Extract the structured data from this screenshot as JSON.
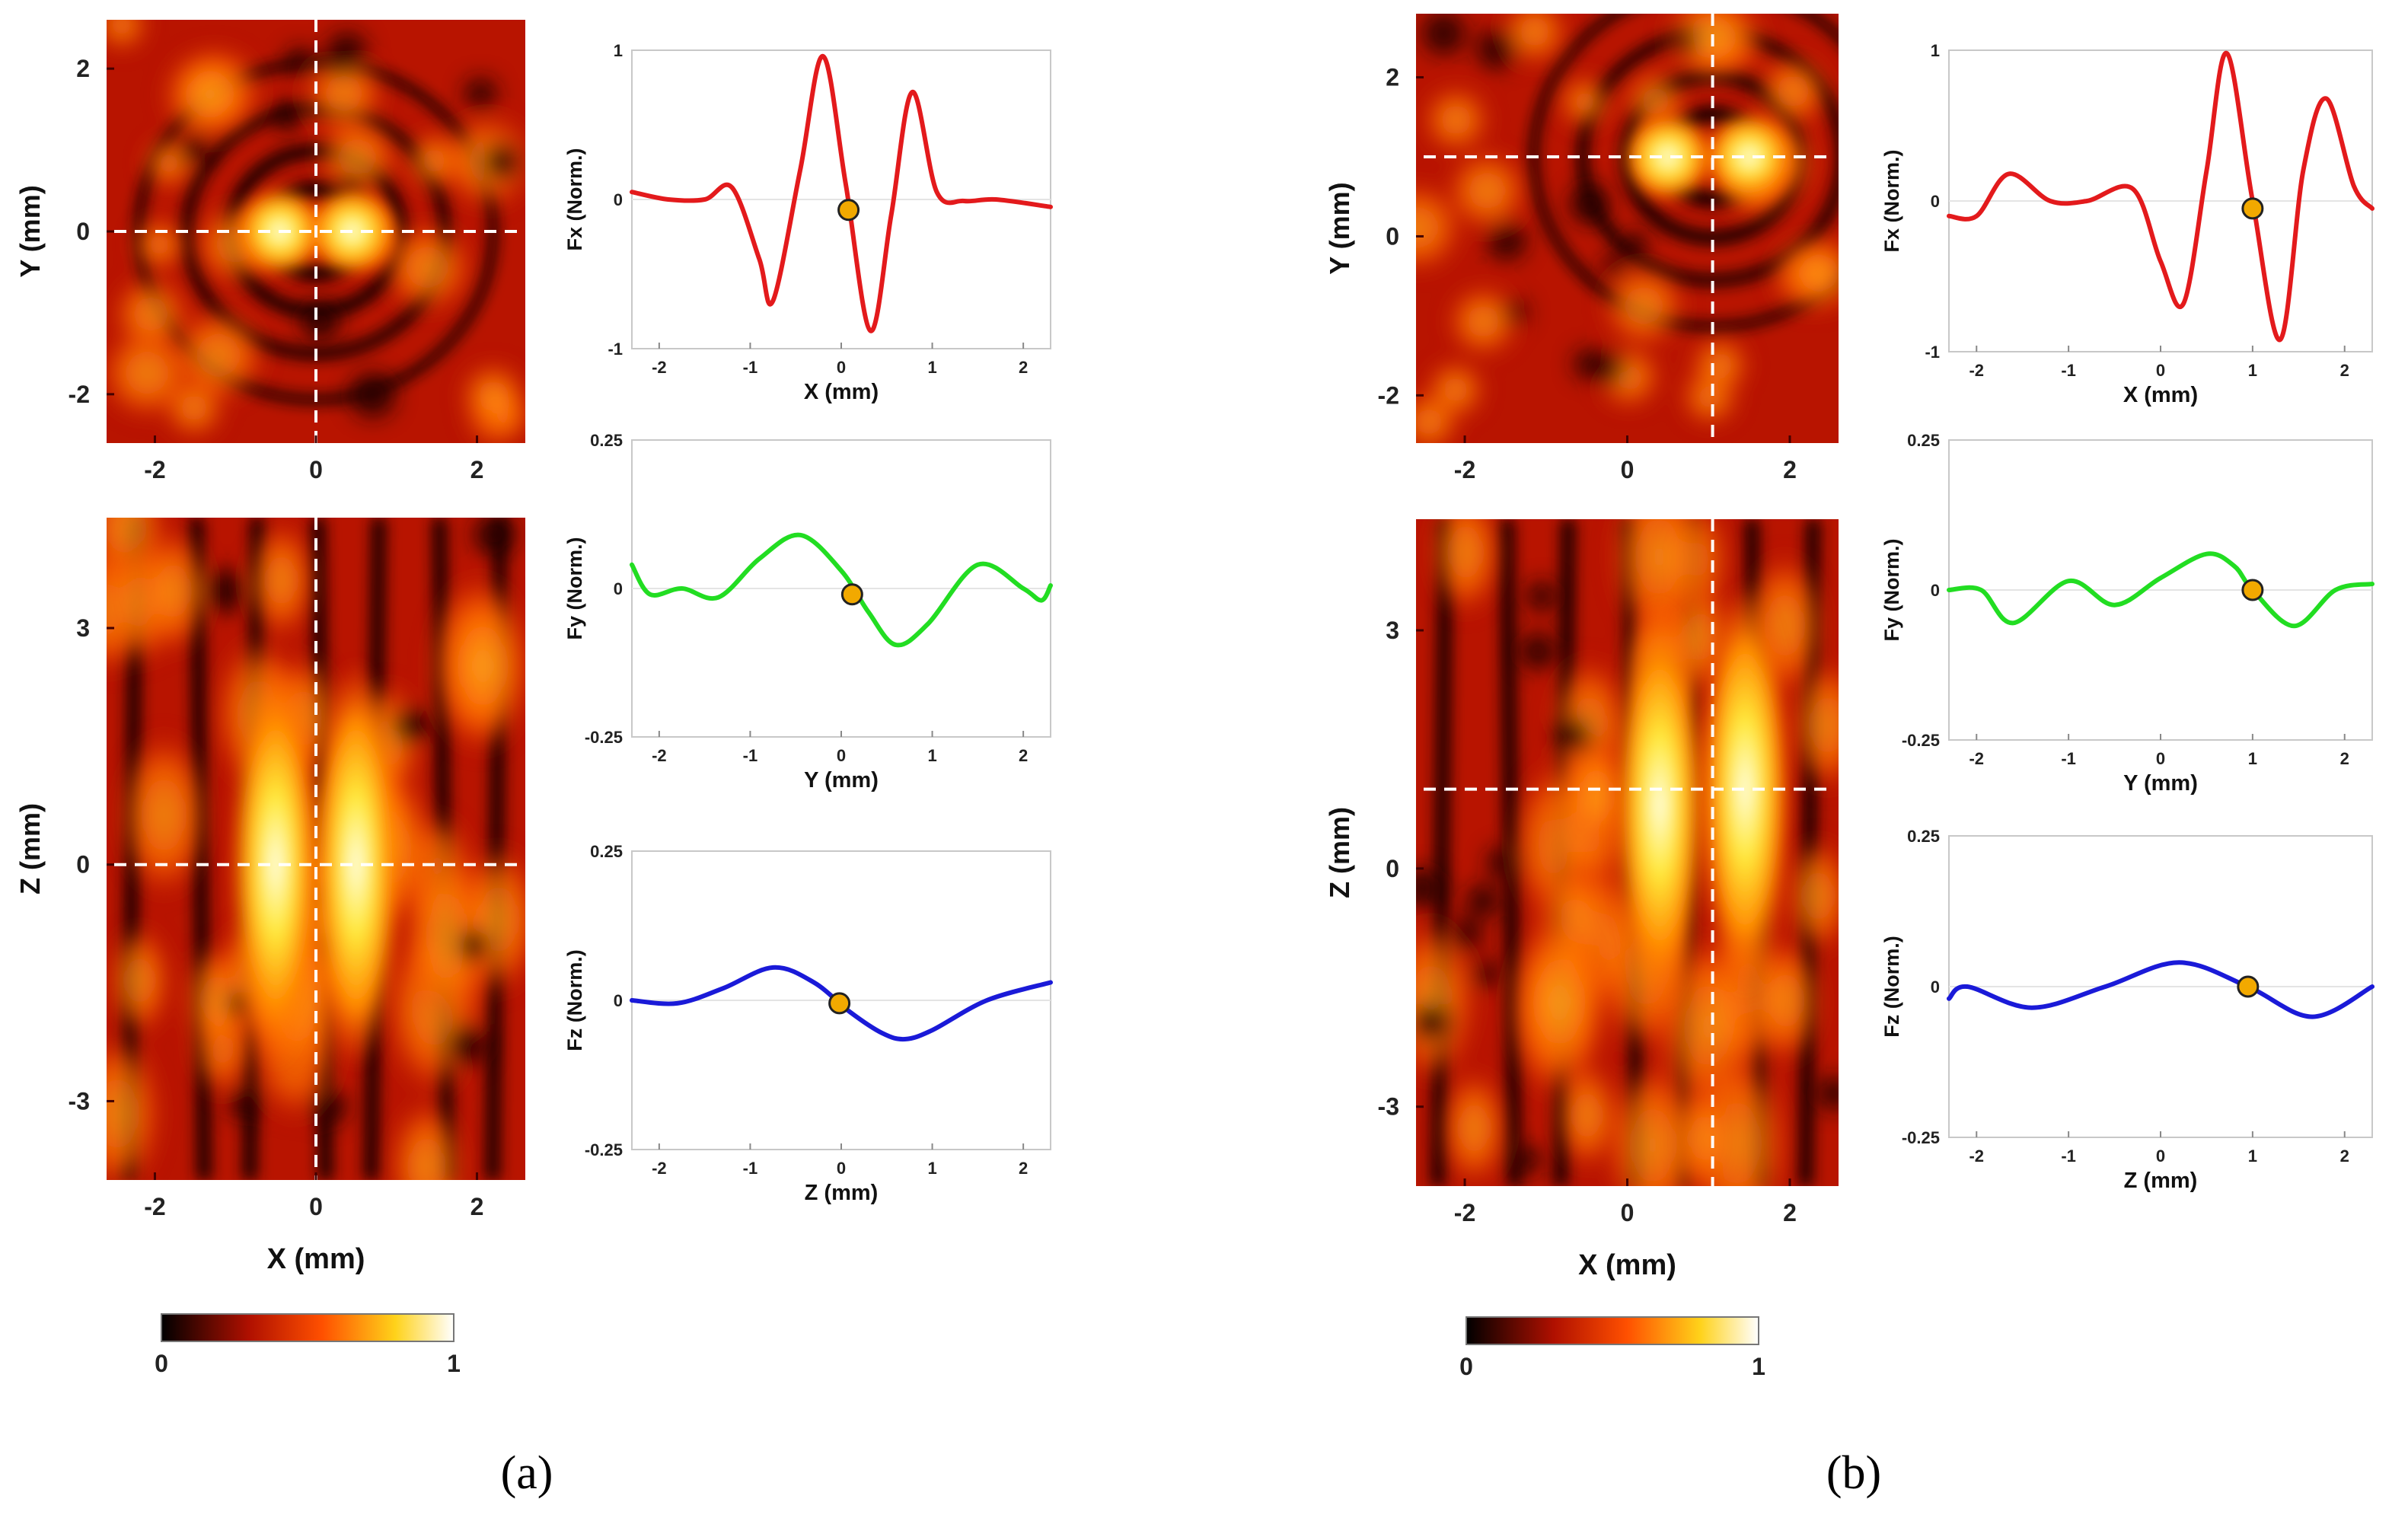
{
  "colorbar": {
    "min_label": "0",
    "max_label": "1"
  },
  "chart_data": [
    {
      "panel": "a",
      "caption": "(a)",
      "maps": [
        {
          "name": "xy-map",
          "type": "heatmap",
          "xlabel": "X (mm)",
          "ylabel": "Y (mm)",
          "xlim": [
            -2.6,
            2.6
          ],
          "ylim": [
            -2.6,
            2.6
          ],
          "xticks": [
            -2,
            0,
            2
          ],
          "yticks": [
            -2,
            0,
            2
          ],
          "crosshair": {
            "x": 0,
            "y": 0
          },
          "peaks": [
            {
              "x": -0.45,
              "y": 0,
              "value": 1.0
            },
            {
              "x": 0.45,
              "y": 0,
              "value": 1.0
            }
          ]
        },
        {
          "name": "xz-map",
          "type": "heatmap",
          "xlabel": "X (mm)",
          "ylabel": "Z (mm)",
          "xlim": [
            -2.6,
            2.6
          ],
          "ylim": [
            -4,
            4.4
          ],
          "xticks": [
            -2,
            0,
            2
          ],
          "yticks": [
            -3,
            0,
            3
          ],
          "crosshair": {
            "x": 0,
            "y": 0
          },
          "peaks": [
            {
              "x": -0.5,
              "y": 0,
              "value": 1.0
            },
            {
              "x": 0.5,
              "y": 0,
              "value": 1.0
            }
          ]
        }
      ],
      "lines": [
        {
          "name": "fx-plot",
          "type": "line",
          "ylabel": "Fx (Norm.)",
          "xlabel": "X (mm)",
          "color": "#e31a1c",
          "xlim": [
            -2.3,
            2.3
          ],
          "ylim": [
            -1,
            1
          ],
          "yticks": [
            -1,
            0,
            1
          ],
          "ytick_labels": [
            "-1",
            "0",
            "1"
          ],
          "xticks": [
            -2,
            -1,
            0,
            1,
            2
          ],
          "x": [
            -2.3,
            -1.9,
            -1.5,
            -1.2,
            -0.9,
            -0.75,
            -0.45,
            -0.2,
            0.05,
            0.32,
            0.55,
            0.78,
            1.05,
            1.35,
            1.7,
            2.3
          ],
          "y": [
            0.05,
            0.0,
            0.0,
            0.08,
            -0.4,
            -0.68,
            0.2,
            0.96,
            0.1,
            -0.88,
            -0.1,
            0.72,
            0.05,
            -0.01,
            0.0,
            -0.05
          ],
          "marker": {
            "x": 0.08,
            "y": -0.07
          }
        },
        {
          "name": "fy-plot",
          "type": "line",
          "ylabel": "Fy (Norm.)",
          "xlabel": "Y (mm)",
          "color": "#22dd22",
          "xlim": [
            -2.3,
            2.3
          ],
          "ylim": [
            -0.25,
            0.25
          ],
          "yticks": [
            -0.25,
            0,
            0.25
          ],
          "ytick_labels": [
            "-0.25",
            "0",
            "0.25"
          ],
          "xticks": [
            -2,
            -1,
            0,
            1,
            2
          ],
          "x": [
            -2.3,
            -2.1,
            -1.75,
            -1.35,
            -0.9,
            -0.45,
            0.0,
            0.3,
            0.6,
            0.95,
            1.5,
            2.0,
            2.2,
            2.3
          ],
          "y": [
            0.04,
            -0.01,
            0.0,
            -0.015,
            0.05,
            0.09,
            0.03,
            -0.04,
            -0.095,
            -0.06,
            0.04,
            0.0,
            -0.02,
            0.005
          ],
          "marker": {
            "x": 0.12,
            "y": -0.01
          }
        },
        {
          "name": "fz-plot",
          "type": "line",
          "ylabel": "Fz (Norm.)",
          "xlabel": "Z (mm)",
          "color": "#1a1ad8",
          "xlim": [
            -2.3,
            2.3
          ],
          "ylim": [
            -0.25,
            0.25
          ],
          "yticks": [
            -0.25,
            0,
            0.25
          ],
          "ytick_labels": [
            "-0.25",
            "0",
            "0.25"
          ],
          "xticks": [
            -2,
            -1,
            0,
            1,
            2
          ],
          "x": [
            -2.3,
            -1.8,
            -1.3,
            -0.75,
            -0.3,
            0.1,
            0.45,
            0.7,
            1.0,
            1.6,
            2.3
          ],
          "y": [
            0.0,
            -0.005,
            0.02,
            0.055,
            0.03,
            -0.02,
            -0.055,
            -0.065,
            -0.05,
            0.0,
            0.03
          ],
          "marker": {
            "x": -0.02,
            "y": -0.005
          }
        }
      ]
    },
    {
      "panel": "b",
      "caption": "(b)",
      "maps": [
        {
          "name": "xy-map",
          "type": "heatmap",
          "xlabel": "X (mm)",
          "ylabel": "Y (mm)",
          "xlim": [
            -2.6,
            2.6
          ],
          "ylim": [
            -2.6,
            2.8
          ],
          "xticks": [
            -2,
            0,
            2
          ],
          "yticks": [
            -2,
            0,
            2
          ],
          "crosshair": {
            "x": 1.05,
            "y": 1.0
          },
          "peaks": [
            {
              "x": 0.5,
              "y": 1.0,
              "value": 1.0
            },
            {
              "x": 1.5,
              "y": 1.0,
              "value": 1.0
            }
          ]
        },
        {
          "name": "xz-map",
          "type": "heatmap",
          "xlabel": "X (mm)",
          "ylabel": "Z (mm)",
          "xlim": [
            -2.6,
            2.6
          ],
          "ylim": [
            -4,
            4.4
          ],
          "xticks": [
            -2,
            0,
            2
          ],
          "yticks": [
            -3,
            0,
            3
          ],
          "crosshair": {
            "x": 1.05,
            "y": 1.0
          },
          "peaks": [
            {
              "x": 0.4,
              "y": 0.8,
              "value": 1.0
            },
            {
              "x": 1.45,
              "y": 1.0,
              "value": 1.0
            }
          ]
        }
      ],
      "lines": [
        {
          "name": "fx-plot",
          "type": "line",
          "ylabel": "Fx (Norm.)",
          "xlabel": "X (mm)",
          "color": "#e31a1c",
          "xlim": [
            -2.3,
            2.3
          ],
          "ylim": [
            -1,
            1
          ],
          "yticks": [
            -1,
            0,
            1
          ],
          "ytick_labels": [
            "-1",
            "0",
            "1"
          ],
          "xticks": [
            -2,
            -1,
            0,
            1,
            2
          ],
          "x": [
            -2.3,
            -2.0,
            -1.65,
            -1.2,
            -0.8,
            -0.3,
            0.0,
            0.25,
            0.5,
            0.72,
            1.0,
            1.3,
            1.55,
            1.8,
            2.1,
            2.3
          ],
          "y": [
            -0.1,
            -0.1,
            0.18,
            0.0,
            0.0,
            0.08,
            -0.4,
            -0.68,
            0.2,
            0.98,
            0.0,
            -0.92,
            0.2,
            0.68,
            0.1,
            -0.05
          ],
          "marker": {
            "x": 1.0,
            "y": -0.05
          }
        },
        {
          "name": "fy-plot",
          "type": "line",
          "ylabel": "Fy (Norm.)",
          "xlabel": "Y (mm)",
          "color": "#22dd22",
          "xlim": [
            -2.3,
            2.3
          ],
          "ylim": [
            -0.25,
            0.25
          ],
          "yticks": [
            -0.25,
            0,
            0.25
          ],
          "ytick_labels": [
            "-0.25",
            "0",
            "0.25"
          ],
          "xticks": [
            -2,
            -1,
            0,
            1,
            2
          ],
          "x": [
            -2.3,
            -1.95,
            -1.6,
            -1.0,
            -0.5,
            0.0,
            0.5,
            0.8,
            1.0,
            1.45,
            1.9,
            2.3
          ],
          "y": [
            0.0,
            0.0,
            -0.055,
            0.015,
            -0.025,
            0.02,
            0.06,
            0.04,
            0.0,
            -0.06,
            0.0,
            0.01
          ],
          "marker": {
            "x": 1.0,
            "y": 0.0
          }
        },
        {
          "name": "fz-plot",
          "type": "line",
          "ylabel": "Fz (Norm.)",
          "xlabel": "Z (mm)",
          "color": "#1a1ad8",
          "xlim": [
            -2.3,
            2.3
          ],
          "ylim": [
            -0.25,
            0.25
          ],
          "yticks": [
            -0.25,
            0,
            0.25
          ],
          "ytick_labels": [
            "-0.25",
            "0",
            "0.25"
          ],
          "xticks": [
            -2,
            -1,
            0,
            1,
            2
          ],
          "x": [
            -2.3,
            -2.1,
            -1.4,
            -0.6,
            0.2,
            0.95,
            1.65,
            2.3
          ],
          "y": [
            -0.02,
            0.0,
            -0.035,
            0.0,
            0.04,
            0.0,
            -0.05,
            0.0
          ],
          "marker": {
            "x": 0.95,
            "y": 0.0
          }
        }
      ]
    }
  ]
}
